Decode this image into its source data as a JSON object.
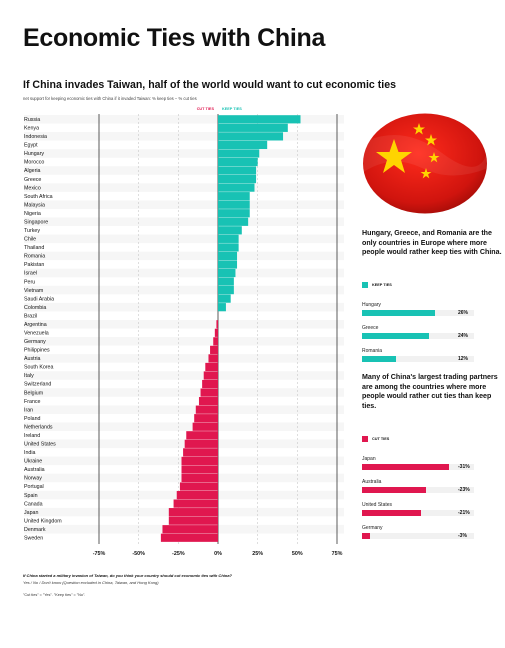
{
  "title": "Economic Ties with China",
  "subtitle": "If China invades Taiwan, half of the world would want to cut economic ties",
  "note": "net support for keeping economic ties with China if it invaded Taiwan: % keep ties − % cut ties",
  "colors": {
    "cut": "#e0174f",
    "keep": "#18c2b4"
  },
  "chart_data": {
    "type": "bar",
    "orientation": "horizontal",
    "legend": [
      "CUT TIES",
      "KEEP TIES"
    ],
    "xlim": [
      -75,
      75
    ],
    "x_ticks": [
      "-75%",
      "-50%",
      "-25%",
      "0%",
      "25%",
      "50%",
      "75%"
    ],
    "x_tick_values": [
      -75,
      -50,
      -25,
      0,
      25,
      50,
      75
    ],
    "categories": [
      "Russia",
      "Kenya",
      "Indonesia",
      "Egypt",
      "Hungary",
      "Morocco",
      "Algeria",
      "Greece",
      "Mexico",
      "South Africa",
      "Malaysia",
      "Nigeria",
      "Singapore",
      "Turkey",
      "Chile",
      "Thailand",
      "Romania",
      "Pakistan",
      "Israel",
      "Peru",
      "Vietnam",
      "Saudi Arabia",
      "Colombia",
      "Brazil",
      "Argentina",
      "Venezuela",
      "Germany",
      "Philippines",
      "Austria",
      "South Korea",
      "Italy",
      "Switzerland",
      "Belgium",
      "France",
      "Iran",
      "Poland",
      "Netherlands",
      "Ireland",
      "United States",
      "India",
      "Ukraine",
      "Australia",
      "Norway",
      "Portugal",
      "Spain",
      "Canada",
      "Japan",
      "United Kingdom",
      "Denmark",
      "Sweden"
    ],
    "values": [
      52,
      44,
      41,
      31,
      26,
      25,
      24,
      24,
      23,
      20,
      20,
      20,
      19,
      15,
      13,
      13,
      12,
      12,
      11,
      10,
      10,
      8,
      5,
      0,
      -1,
      -2,
      -3,
      -5,
      -6,
      -8,
      -9,
      -10,
      -11,
      -12,
      -14,
      -15,
      -16,
      -20,
      -21,
      -22,
      -23,
      -23,
      -23,
      -24,
      -26,
      -28,
      -31,
      -31,
      -35,
      -36
    ]
  },
  "side": {
    "heading_keep": "Hungary, Greece, and Romania are the only countries in Europe where more people would rather keep ties with China.",
    "legend_keep": "KEEP TIES",
    "keep_items": [
      {
        "label": "Hungary",
        "value": 26,
        "text": "26%"
      },
      {
        "label": "Greece",
        "value": 24,
        "text": "24%"
      },
      {
        "label": "Romania",
        "value": 12,
        "text": "12%"
      }
    ],
    "heading_cut": "Many of China's largest trading partners are among the countries where more people would rather cut ties than keep ties.",
    "legend_cut": "CUT TIES",
    "cut_items": [
      {
        "label": "Japan",
        "value": -31,
        "text": "-31%"
      },
      {
        "label": "Australia",
        "value": -23,
        "text": "-23%"
      },
      {
        "label": "United States",
        "value": -21,
        "text": "-21%"
      },
      {
        "label": "Germany",
        "value": -3,
        "text": "-3%"
      }
    ]
  },
  "footer": {
    "question": "If China started a military invasion of Taiwan, do you think your country should cut economic ties with China?",
    "answers": "Yes / No / Don't know   (Question excluded in China, Taiwan, and Hong Kong)",
    "key": "\"Cut ties\" = \"Yes\". \"Keep ties\" = \"No\"."
  }
}
